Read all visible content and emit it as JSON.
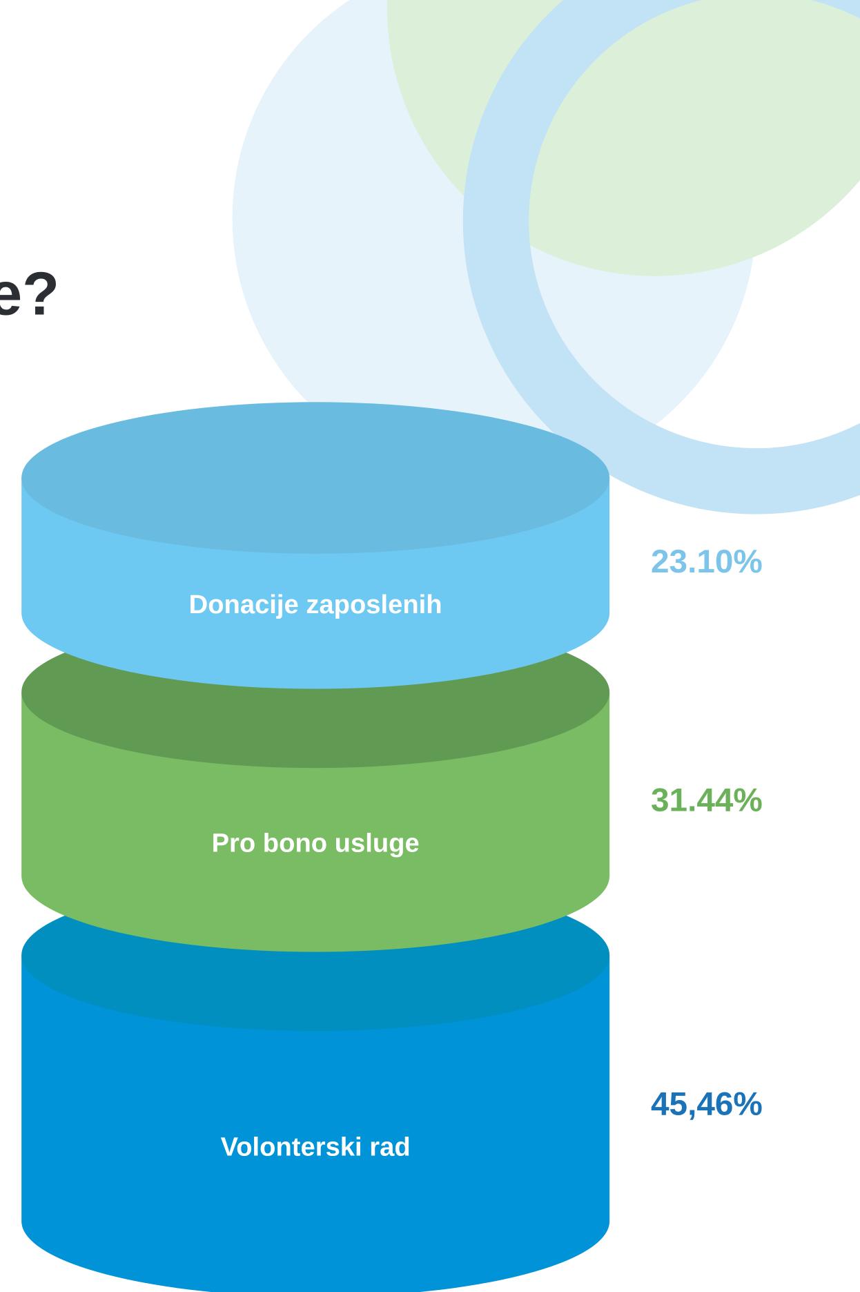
{
  "chart_data": {
    "type": "stacked_cylinder",
    "title": "e?",
    "categories": [
      "Donacije zaposlenih",
      "Pro bono usluge",
      "Volonterski rad"
    ],
    "values": [
      23.1,
      31.44,
      45.46
    ],
    "value_labels": [
      "23.10%",
      "31.44%",
      "45,46%"
    ],
    "side_colors": [
      "#6dc8f2",
      "#79bc63",
      "#0093d8"
    ],
    "cap_colors": [
      "#6abbe0",
      "#619a52",
      "#008fbf"
    ],
    "label_colors": [
      "#7cc4ea",
      "#6ab15a",
      "#1a72b8"
    ]
  }
}
